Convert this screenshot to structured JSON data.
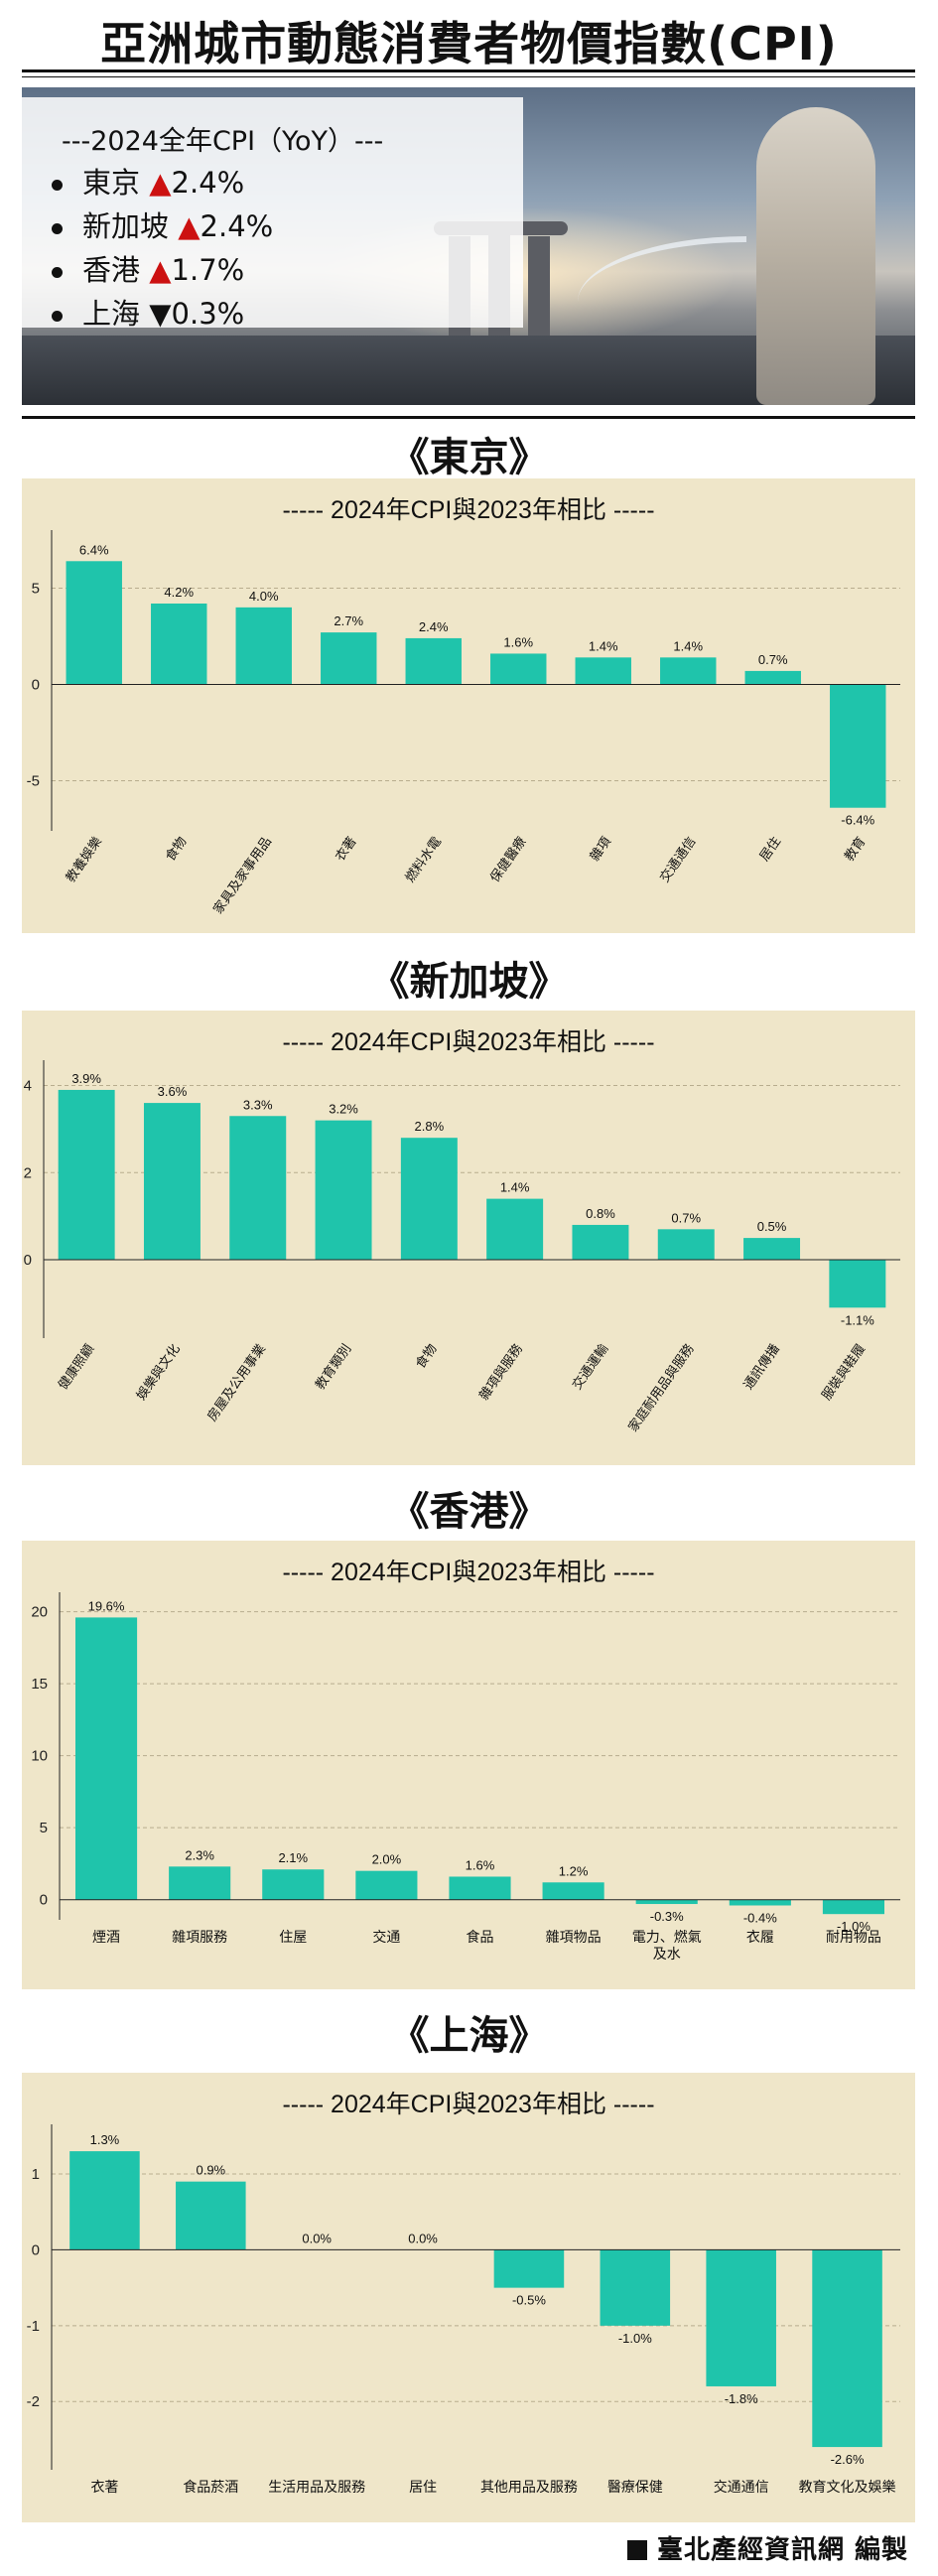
{
  "page_title": "亞洲城市動態消費者物價指數(CPI)",
  "summary": {
    "heading": "---2024全年CPI（YoY）---",
    "items": [
      {
        "city": "東京",
        "direction": "up",
        "arrow": "▲",
        "value": "2.4%"
      },
      {
        "city": "新加坡",
        "direction": "up",
        "arrow": "▲",
        "value": "2.4%"
      },
      {
        "city": "香港",
        "direction": "up",
        "arrow": "▲",
        "value": "1.7%"
      },
      {
        "city": "上海",
        "direction": "down",
        "arrow": "▼",
        "value": "0.3%"
      }
    ]
  },
  "sections": [
    {
      "heading": "《東京》"
    },
    {
      "heading": "《新加坡》"
    },
    {
      "heading": "《香港》"
    },
    {
      "heading": "《上海》"
    }
  ],
  "footer": "臺北產經資訊網 編製",
  "colors": {
    "bar": "#1fc4ab",
    "panel_bg": "#efe6c9",
    "up_arrow": "#cc1111",
    "down_arrow": "#111111"
  },
  "chart_data": [
    {
      "type": "bar",
      "title": "----- 2024年CPI與2023年相比 -----",
      "categories": [
        "教養娛樂",
        "食物",
        "家具及家事用品",
        "衣著",
        "燃料水電",
        "保健醫療",
        "雜項",
        "交通通信",
        "居住",
        "教育"
      ],
      "values": [
        6.4,
        4.2,
        4.0,
        2.7,
        2.4,
        1.6,
        1.4,
        1.4,
        0.7,
        -6.4
      ],
      "value_labels": [
        "6.4%",
        "4.2%",
        "4.0%",
        "2.7%",
        "2.4%",
        "1.6%",
        "1.4%",
        "1.4%",
        "0.7%",
        "-6.4%"
      ],
      "yticks": [
        -5,
        0,
        5
      ],
      "ylim": [
        -7.6,
        7.6
      ],
      "xlabel_rotation": -55,
      "grid": true
    },
    {
      "type": "bar",
      "title": "----- 2024年CPI與2023年相比 -----",
      "categories": [
        "健康照顧",
        "娛樂與文化",
        "房屋及公用事業",
        "教育類別",
        "食物",
        "雜項與服務",
        "交通運輸",
        "家庭耐用品與服務",
        "通訊傳播",
        "服裝與鞋履"
      ],
      "values": [
        3.9,
        3.6,
        3.3,
        3.2,
        2.8,
        1.4,
        0.8,
        0.7,
        0.5,
        -1.1
      ],
      "value_labels": [
        "3.9%",
        "3.6%",
        "3.3%",
        "3.2%",
        "2.8%",
        "1.4%",
        "0.8%",
        "0.7%",
        "0.5%",
        "-1.1%"
      ],
      "yticks": [
        0,
        2,
        4
      ],
      "ylim": [
        -1.8,
        4.4
      ],
      "xlabel_rotation": -55,
      "grid": true
    },
    {
      "type": "bar",
      "title": "----- 2024年CPI與2023年相比 -----",
      "categories": [
        "煙酒",
        "雜項服務",
        "住屋",
        "交通",
        "食品",
        "雜項物品",
        "電力、燃氣\n及水",
        "衣履",
        "耐用物品"
      ],
      "values": [
        19.6,
        2.3,
        2.1,
        2.0,
        1.6,
        1.2,
        -0.3,
        -0.4,
        -1.0
      ],
      "value_labels": [
        "19.6%",
        "2.3%",
        "2.1%",
        "2.0%",
        "1.6%",
        "1.2%",
        "-0.3%",
        "-0.4%",
        "-1.0%"
      ],
      "yticks": [
        0,
        5,
        10,
        15,
        20
      ],
      "ylim": [
        -1.4,
        20.8
      ],
      "xlabel_rotation": 0,
      "grid": true
    },
    {
      "type": "bar",
      "title": "----- 2024年CPI與2023年相比 -----",
      "categories": [
        "衣著",
        "食品菸酒",
        "生活用品及服務",
        "居住",
        "其他用品及服務",
        "醫療保健",
        "交通通信",
        "教育文化及娛樂"
      ],
      "values": [
        1.3,
        0.9,
        0.0,
        0.0,
        -0.5,
        -1.0,
        -1.8,
        -2.6
      ],
      "value_labels": [
        "1.3%",
        "0.9%",
        "0.0%",
        "0.0%",
        "-0.5%",
        "-1.0%",
        "-1.8%",
        "-2.6%"
      ],
      "yticks": [
        -2,
        -1,
        0,
        1
      ],
      "ylim": [
        -2.9,
        1.55
      ],
      "xlabel_rotation": 0,
      "grid": true
    }
  ]
}
